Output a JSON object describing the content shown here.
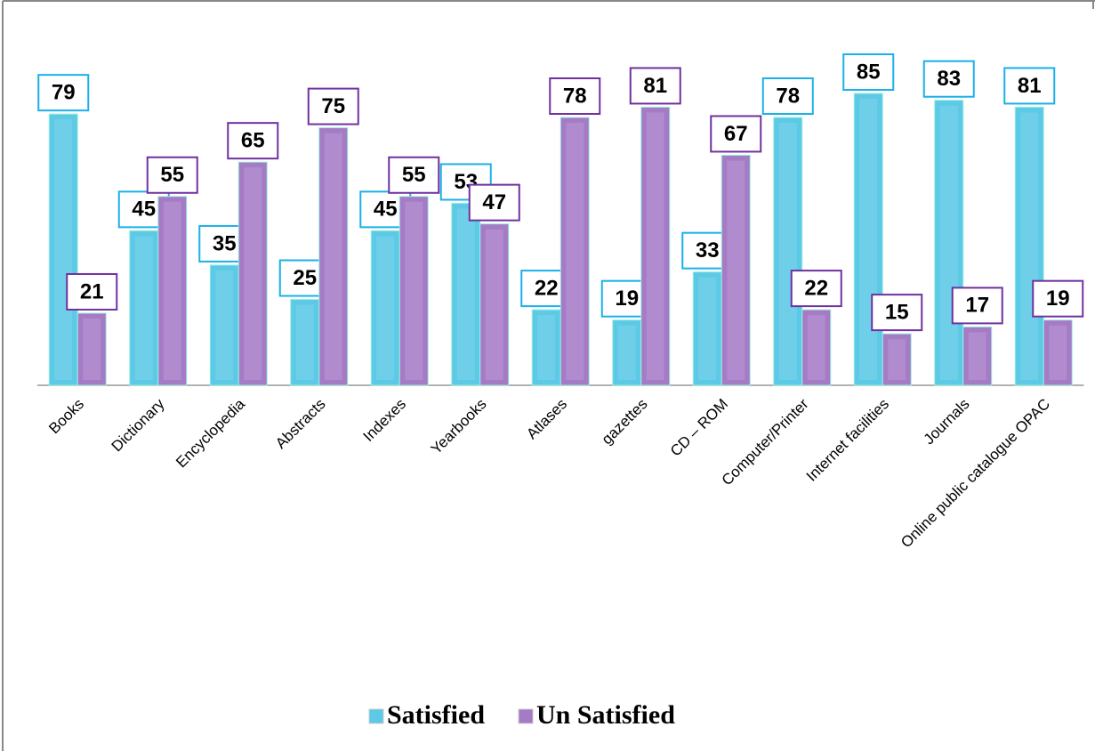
{
  "chart_data": {
    "type": "bar",
    "categories": [
      "Books",
      "Dictionary",
      "Encyclopedia",
      "Abstracts",
      "Indexes",
      "Yearbooks",
      "Atlases",
      "gazettes",
      "CD – ROM",
      "Computer/Printer",
      "Internet facilities",
      "Journals",
      "Online public catalogue OPAC"
    ],
    "series": [
      {
        "name": "Satisfied",
        "color": "#5cc9e6",
        "label_border": "#1ab0e8",
        "values": [
          79,
          45,
          35,
          25,
          45,
          53,
          22,
          19,
          33,
          78,
          85,
          83,
          81
        ]
      },
      {
        "name": "Un Satisfied",
        "color": "#a57bc6",
        "label_border": "#7030a0",
        "values": [
          21,
          55,
          65,
          75,
          55,
          47,
          78,
          81,
          67,
          22,
          15,
          17,
          19
        ]
      }
    ]
  }
}
